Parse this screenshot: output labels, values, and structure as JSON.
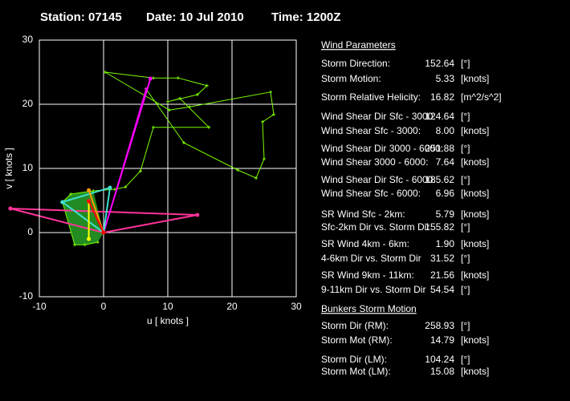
{
  "header": {
    "station": "Station: 07145",
    "date": "Date: 10 Jul 2010",
    "time": "Time: 1200Z"
  },
  "chart_data": {
    "type": "line",
    "xlabel": "u  [ knots ]",
    "ylabel": "v  [ knots ]",
    "xlim": [
      -10,
      30
    ],
    "ylim": [
      -10,
      30
    ],
    "xticks": [
      -10,
      0,
      10,
      20,
      30
    ],
    "yticks": [
      -10,
      0,
      10,
      20,
      30
    ],
    "grid": true,
    "series": [
      {
        "color": "#228b22",
        "fill": true,
        "x": [
          -6.4,
          -4.5,
          -2.9,
          -0.9,
          0,
          -1.6,
          -5.1
        ],
        "values": [
          4.75,
          -1.9,
          -1.9,
          -1.5,
          0,
          6.5,
          6
        ]
      },
      {
        "color": "#7cfc00",
        "x": [
          -0.9,
          -2.9,
          -4.5,
          -6.4,
          -5.1,
          -1.6,
          1.75,
          3.4,
          5.75,
          7.75,
          16.4,
          11.9,
          10,
          14.6,
          16.1,
          11.6,
          7.75,
          0.25,
          10.25,
          13.4,
          26,
          26.5,
          24.75,
          25,
          23.75,
          20.9,
          12.5,
          6.6
        ],
        "values": [
          -1.5,
          -1.9,
          -1.9,
          4.75,
          6,
          6.5,
          6.75,
          7.1,
          9.6,
          16.4,
          16.4,
          20.9,
          20.4,
          21.5,
          22.9,
          24.1,
          24.1,
          25,
          19.1,
          19.6,
          21.9,
          18.4,
          17.25,
          11.5,
          8.5,
          9.75,
          14,
          22.4
        ]
      },
      {
        "color": "#ff3399",
        "markers": true,
        "x": [
          -14.5,
          0,
          14.6,
          -14.5
        ],
        "values": [
          3.75,
          0,
          2.75,
          3.75
        ]
      },
      {
        "color": "#ff00ff",
        "markers": true,
        "x": [
          0,
          7.3
        ],
        "values": [
          0,
          24
        ]
      },
      {
        "color": "#ff00ff",
        "x": [
          0,
          6.6
        ],
        "values": [
          0,
          22.4
        ]
      },
      {
        "color": "#40e0d0",
        "markers": true,
        "x": [
          -6.4,
          0,
          1,
          -6.4
        ],
        "values": [
          4.75,
          0,
          7,
          4.75
        ]
      },
      {
        "color": "#ff9900",
        "markers": true,
        "x": [
          0,
          -2.3
        ],
        "values": [
          0,
          6.6
        ]
      },
      {
        "color": "#ffff00",
        "markers": true,
        "x": [
          -2.3,
          -2.3
        ],
        "values": [
          4.9,
          -1
        ]
      },
      {
        "color": "#ff0000",
        "markers": true,
        "x": [
          0,
          -2.3
        ],
        "values": [
          0,
          4.9
        ]
      }
    ]
  },
  "parameters": {
    "title": "Wind Parameters",
    "rows": [
      {
        "label": "Storm Direction:",
        "value": "152.64",
        "unit": "[°]",
        "color": "#ff0000"
      },
      {
        "label": "Storm Motion:",
        "value": "5.33",
        "unit": "[knots]",
        "color": "#ff0000"
      },
      {
        "label": "Storm Relative Helicity:",
        "value": "16.82",
        "unit": "[m^2/s^2]",
        "color": "#33cc33"
      },
      {
        "label": "Wind Shear Dir Sfc - 3000:",
        "value": "124.64",
        "unit": "[°]",
        "color": "#33ccff"
      },
      {
        "label": "Wind Shear Sfc - 3000:",
        "value": "8.00",
        "unit": "[knots]",
        "color": "#33ccff"
      },
      {
        "label": "Wind Shear Dir 3000 - 6000:",
        "value": "251.88",
        "unit": "[°]",
        "color": "#33ccff"
      },
      {
        "label": "Wind Shear 3000 - 6000:",
        "value": "7.64",
        "unit": "[knots]",
        "color": "#33ccff"
      },
      {
        "label": "Wind Shear Dir Sfc - 6000:",
        "value": "185.62",
        "unit": "[°]",
        "color": "#33ccff"
      },
      {
        "label": "Wind Shear Sfc - 6000:",
        "value": "6.96",
        "unit": "[knots]",
        "color": "#33ccff"
      },
      {
        "label": "SR Wind Sfc - 2km:",
        "value": "5.79",
        "unit": "[knots]",
        "color": "#ffff00"
      },
      {
        "label": "Sfc-2km Dir vs. Storm Dir",
        "value": "155.82",
        "unit": "[°]",
        "color": "#ffff00"
      },
      {
        "label": "SR Wind 4km - 6km:",
        "value": "1.90",
        "unit": "[knots]",
        "color": "#ff9900"
      },
      {
        "label": "4-6km Dir vs. Storm Dir",
        "value": "31.52",
        "unit": "[°]",
        "color": "#ff9900"
      },
      {
        "label": "SR Wind 9km - 11km:",
        "value": "21.56",
        "unit": "[knots]",
        "color": "#ff00ff"
      },
      {
        "label": "9-11km Dir vs. Storm Dir",
        "value": "54.54",
        "unit": "[°]",
        "color": "#ff00ff"
      }
    ]
  },
  "bunkers": {
    "title": "Bunkers Storm Motion",
    "rows": [
      {
        "label": "Storm Dir (RM):",
        "value": "258.93",
        "unit": "[°]",
        "color": "#ff3399"
      },
      {
        "label": "Storm Mot (RM):",
        "value": "14.79",
        "unit": "[knots]",
        "color": "#ff3399"
      },
      {
        "label": "Storm Dir (LM):",
        "value": "104.24",
        "unit": "[°]",
        "color": "#ff3399"
      },
      {
        "label": "Storm Mot (LM):",
        "value": "15.08",
        "unit": "[knots]",
        "color": "#ff3399"
      }
    ]
  }
}
